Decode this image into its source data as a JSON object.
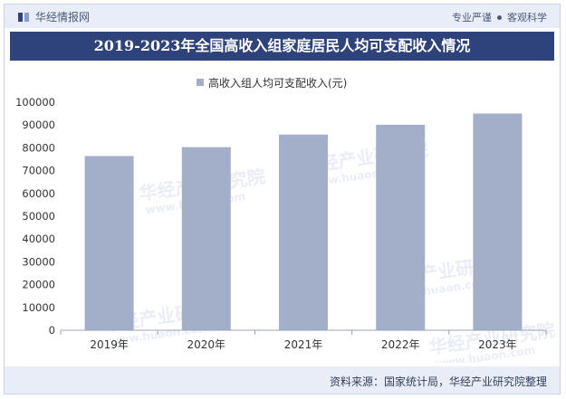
{
  "header": {
    "brand": "华经情报网",
    "motto_left": "专业严谨",
    "motto_right": "客观科学"
  },
  "title": "2019-2023年全国高收入组家庭居民人均可支配收入情况",
  "chart_data": {
    "type": "bar",
    "categories": [
      "2019年",
      "2020年",
      "2021年",
      "2022年",
      "2023年"
    ],
    "series": [
      {
        "name": "高收入组人均可支配收入(元)",
        "values": [
          76401,
          80294,
          85836,
          90116,
          95055
        ]
      }
    ],
    "ylim": [
      0,
      100000
    ],
    "yticks": [
      0,
      10000,
      20000,
      30000,
      40000,
      50000,
      60000,
      70000,
      80000,
      90000,
      100000
    ],
    "legend_position": "top-center",
    "grid": false,
    "bar_color": "#a3aec9"
  },
  "footer": {
    "source": "资料来源：国家统计局，华经产业研究院整理"
  },
  "watermark": {
    "text": "华经产业研究院",
    "url": "www.huaon.com"
  }
}
